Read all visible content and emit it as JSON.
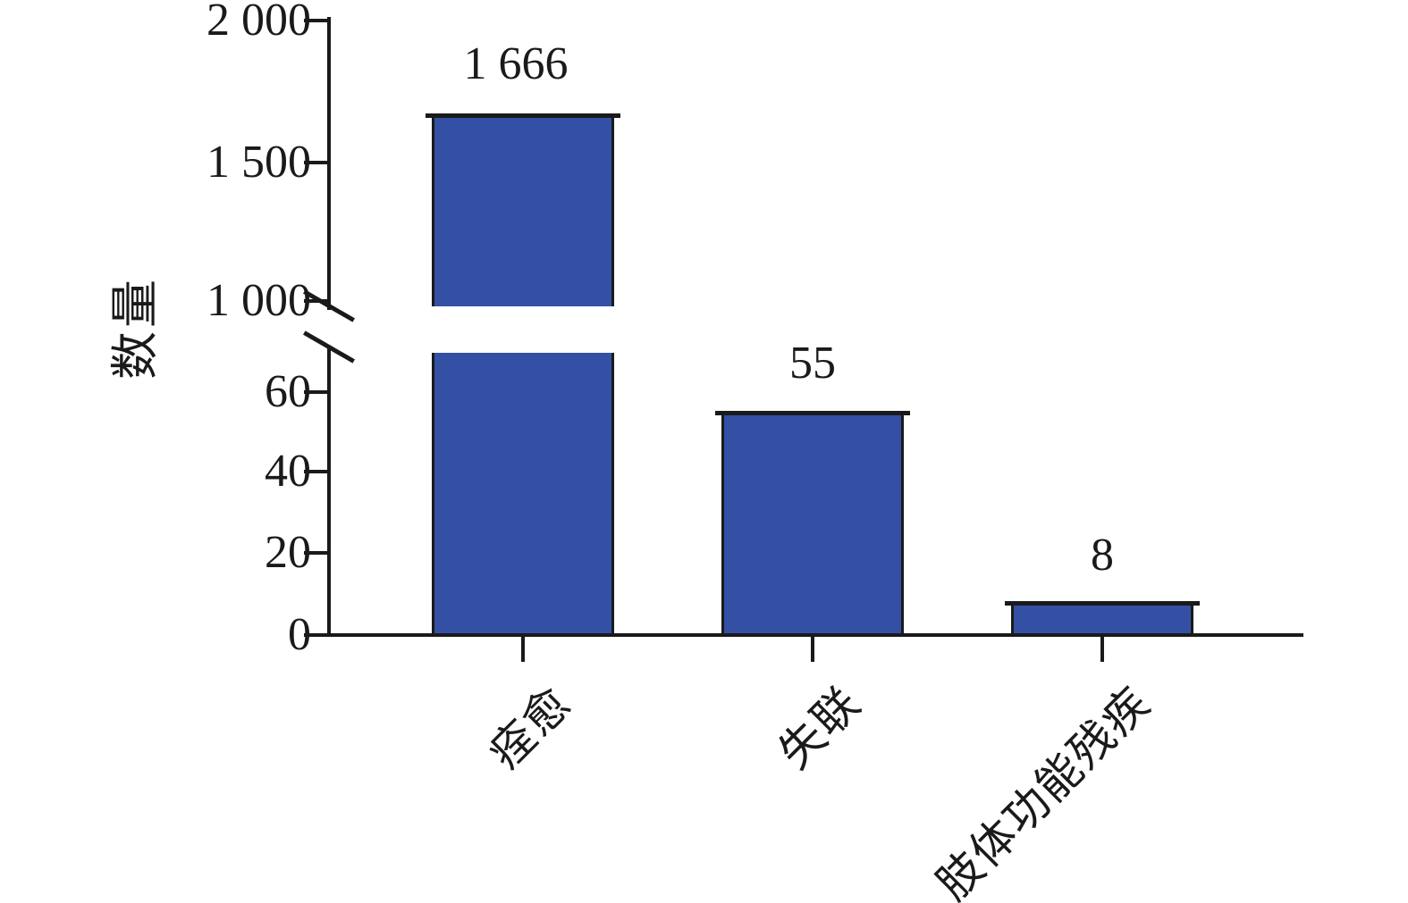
{
  "chart_data": {
    "type": "bar",
    "categories": [
      "痊愈",
      "失联",
      "肢体功能残疾"
    ],
    "values": [
      1666,
      55,
      8
    ],
    "value_labels": [
      "1 666",
      "55",
      "8"
    ],
    "title": "",
    "xlabel": "",
    "ylabel": "数量",
    "yticks": [
      0,
      20,
      40,
      60,
      1000,
      1500,
      2000
    ],
    "ytick_labels_displayed": [
      "2 000",
      "1 500",
      "1 000",
      "60",
      "40",
      "20",
      "0"
    ],
    "axis_break": {
      "lower_segment_range": [
        0,
        75
      ],
      "upper_segment_range": [
        1000,
        2000
      ]
    },
    "grid": false,
    "legend_position": "none",
    "bar_color": "#3450a5",
    "axis_color": "#1a1a1a"
  },
  "yaxis": {
    "label": "数量",
    "tick_labels": [
      "2 000",
      "1 500",
      "1 000",
      "60",
      "40",
      "20",
      "0"
    ]
  },
  "bars": [
    {
      "category": "痊愈",
      "value": 1666,
      "value_label": "1 666"
    },
    {
      "category": "失联",
      "value": 55,
      "value_label": "55"
    },
    {
      "category": "肢体功能残疾",
      "value": 8,
      "value_label": "8"
    }
  ]
}
